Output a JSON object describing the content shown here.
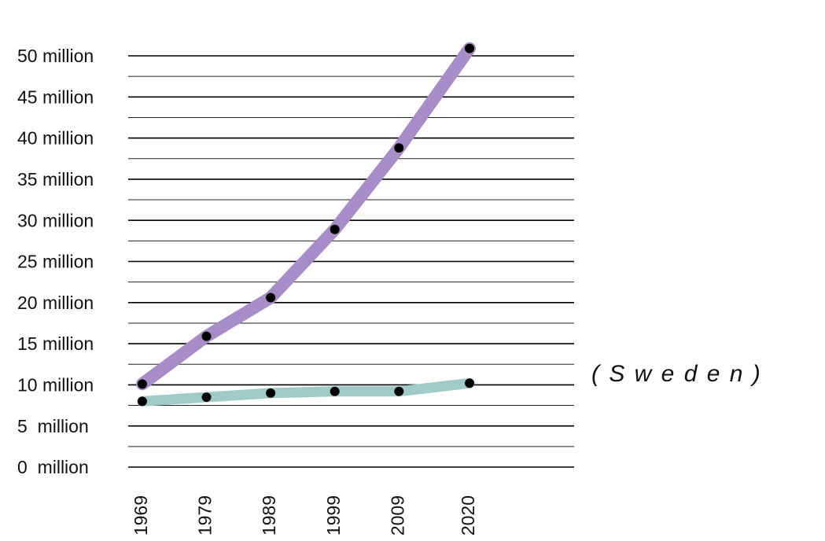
{
  "chart_data": {
    "type": "line",
    "annotation": "( S w e d e n )",
    "x": [
      1969,
      1979,
      1989,
      1999,
      2009,
      2020
    ],
    "xticks": [
      1969,
      1979,
      1989,
      1999,
      2009,
      2020
    ],
    "xlim": [
      1966.8,
      2036.3
    ],
    "ylim": [
      0,
      50
    ],
    "yticks": [
      {
        "value": 0,
        "label": "0  million"
      },
      {
        "value": 5,
        "label": "5  million"
      },
      {
        "value": 10,
        "label": "10 million"
      },
      {
        "value": 15,
        "label": "15 million"
      },
      {
        "value": 20,
        "label": "20 million"
      },
      {
        "value": 25,
        "label": "25 million"
      },
      {
        "value": 30,
        "label": "30 million"
      },
      {
        "value": 35,
        "label": "35 million"
      },
      {
        "value": 40,
        "label": "40 million"
      },
      {
        "value": 45,
        "label": "45 million"
      },
      {
        "value": 50,
        "label": "50 million"
      }
    ],
    "minor_yticks": [
      2.5,
      7.5,
      12.5,
      17.5,
      22.5,
      27.5,
      32.5,
      37.5,
      42.5,
      47.5
    ],
    "grid": true,
    "marker_color": "#000000",
    "series": [
      {
        "color": "#a88bc9",
        "values": [
          10.1,
          15.9,
          20.6,
          28.9,
          38.8,
          50.9
        ]
      },
      {
        "color": "#9ecbc8",
        "values": [
          8.0,
          8.5,
          9.0,
          9.2,
          9.2,
          10.2
        ]
      }
    ]
  }
}
